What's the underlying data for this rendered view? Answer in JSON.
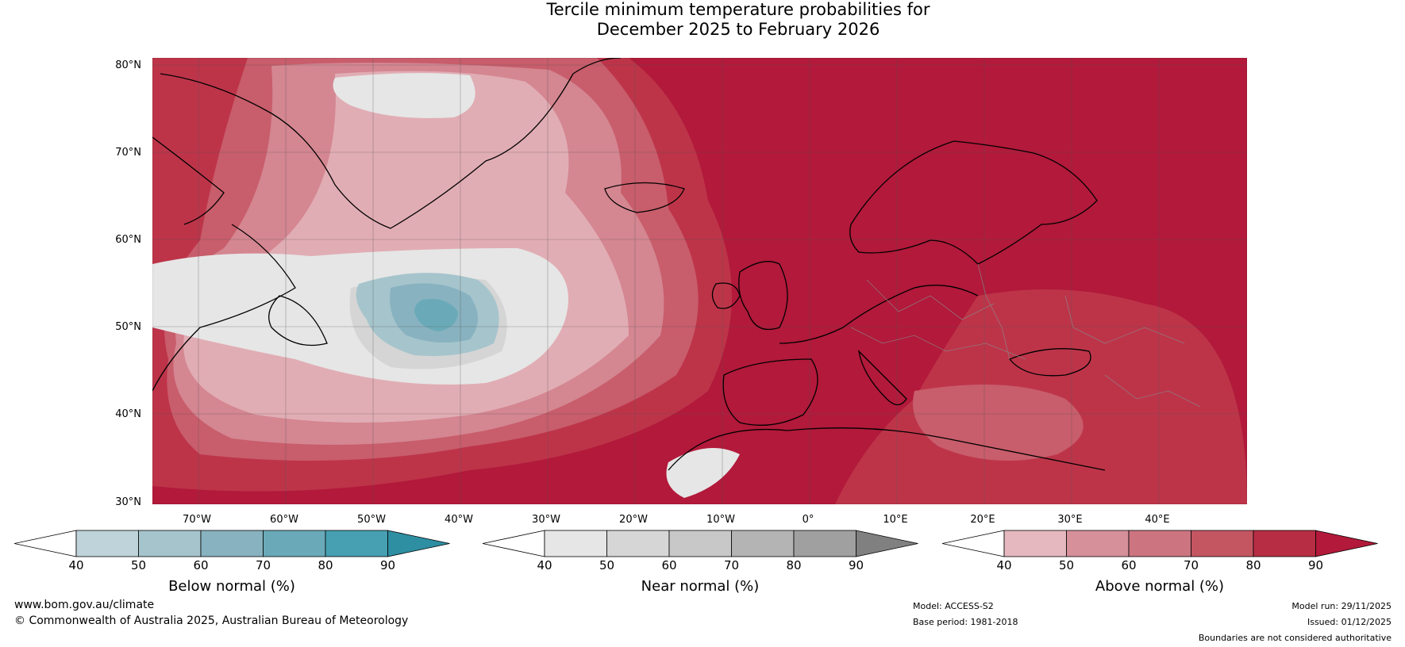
{
  "title_line1": "Tercile minimum temperature probabilities for",
  "title_line2": "December 2025 to February 2026",
  "lat_labels": [
    "80°N",
    "70°N",
    "60°N",
    "50°N",
    "40°N",
    "30°N"
  ],
  "lon_labels": [
    "70°W",
    "60°W",
    "50°W",
    "40°W",
    "30°W",
    "20°W",
    "10°W",
    "0°",
    "10°E",
    "20°E",
    "30°E",
    "40°E"
  ],
  "colorbars": [
    {
      "label": "Below normal (%)",
      "ticks": [
        "40",
        "50",
        "60",
        "70",
        "80",
        "90"
      ],
      "colors": [
        "#bed3da",
        "#a6c4cc",
        "#88b2c0",
        "#6aaab8",
        "#46a0b2",
        "#2e8ea2"
      ]
    },
    {
      "label": "Near normal (%)",
      "ticks": [
        "40",
        "50",
        "60",
        "70",
        "80",
        "90"
      ],
      "colors": [
        "#e6e6e6",
        "#d6d6d6",
        "#c8c8c8",
        "#b4b4b4",
        "#a0a0a0",
        "#808080"
      ]
    },
    {
      "label": "Above normal (%)",
      "ticks": [
        "40",
        "50",
        "60",
        "70",
        "80",
        "90"
      ],
      "colors": [
        "#e4b8be",
        "#d6909a",
        "#cc7580",
        "#c45662",
        "#b72e44",
        "#b2193a"
      ]
    }
  ],
  "footer": {
    "website": "www.bom.gov.au/climate",
    "copyright": "© Commonwealth of Australia 2025, Australian Bureau of Meteorology",
    "model": "Model: ACCESS-S2",
    "base_period": "Base period: 1981-2018",
    "model_run": "Model run: 29/11/2025",
    "issued": "Issued: 01/12/2025",
    "disclaimer": "Boundaries are not considered authoritative"
  },
  "map_colors": {
    "above_90": "#b2193a",
    "above_80": "#bd3449",
    "above_70": "#c85d6b",
    "above_60": "#d48691",
    "above_50": "#e1adb4",
    "near_40": "#e6e6e6",
    "near_50": "#d5d5d5",
    "below_50": "#a6c4cc",
    "below_60": "#88b2c0",
    "below_70": "#6aaab8",
    "coast": "#000000",
    "border": "#888888",
    "grid": "#555555"
  }
}
